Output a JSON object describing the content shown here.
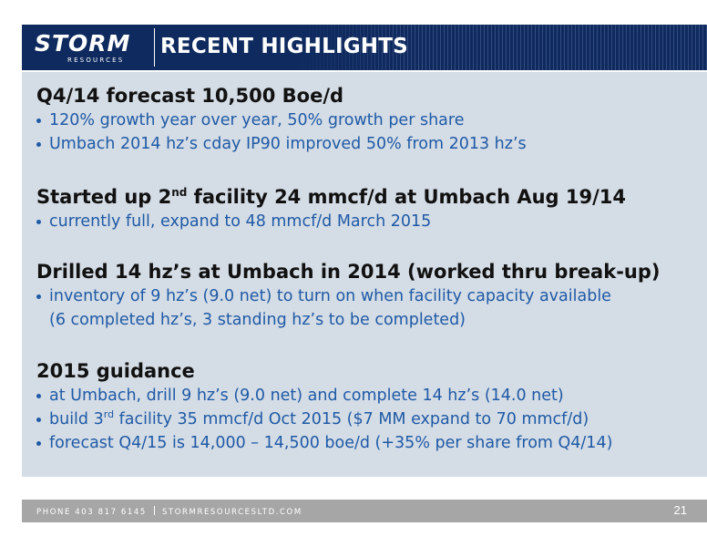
{
  "header": {
    "logo_word": "STORM",
    "logo_sub": "RESOURCES",
    "title": "RECENT HIGHLIGHTS"
  },
  "sections": [
    {
      "heading": "Q4/14 forecast 10,500 Boe/d",
      "bullets": [
        "120% growth year over year, 50% growth per share",
        "Umbach 2014 hz’s cday IP90 improved 50% from 2013 hz’s"
      ]
    },
    {
      "heading_pre": "Started up 2",
      "heading_sup": "nd",
      "heading_post": " facility 24 mmcf/d at Umbach Aug 19/14",
      "bullets": [
        "currently full, expand to 48 mmcf/d March 2015"
      ]
    },
    {
      "heading": "Drilled 14 hz’s at Umbach in 2014 (worked thru break-up)",
      "bullets": [
        "inventory of 9 hz’s (9.0 net) to turn on when facility capacity available"
      ],
      "continuation": "(6 completed hz’s, 3 standing hz’s to be completed)"
    },
    {
      "heading": "2015 guidance",
      "bullet_1": "at Umbach, drill 9 hz’s (9.0 net) and complete 14 hz’s (14.0 net)",
      "bullet_2_pre": "build 3",
      "bullet_2_sup": "rd",
      "bullet_2_post": " facility 35 mmcf/d Oct 2015 ($7 MM expand to 70 mmcf/d)",
      "bullet_3": "forecast Q4/15 is 14,000 – 14,500 boe/d (+35% per share from Q4/14)"
    }
  ],
  "footer": {
    "phone": "PHONE 403 817 6145",
    "website": "STORMRESOURCESLTD.COM",
    "page_number": "21"
  },
  "colors": {
    "header_bg": "#0f2a5e",
    "content_bg": "#d4dce5",
    "bullet_text": "#1f5aa6",
    "footer_bg": "#a6a6a6"
  }
}
